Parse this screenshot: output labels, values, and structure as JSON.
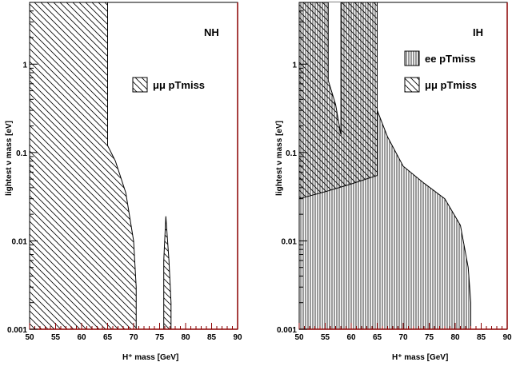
{
  "chart_data": [
    {
      "type": "area",
      "panel_label": "NH",
      "xlabel": "H⁺ mass [GeV]",
      "ylabel": "lightest ν mass [eV]",
      "xlim": [
        50,
        90
      ],
      "ylim": [
        0.001,
        5
      ],
      "yscale": "log",
      "xticks": [
        "50",
        "55",
        "60",
        "65",
        "70",
        "75",
        "80",
        "85",
        "90"
      ],
      "yticks": [
        {
          "value": 0.001,
          "label": "0.001"
        },
        {
          "value": 0.01,
          "label": "0.01"
        },
        {
          "value": 0.1,
          "label": "0.1"
        },
        {
          "value": 1,
          "label": "1"
        }
      ],
      "legend": [
        {
          "label": "μμ pTmiss",
          "pattern": "diagonal"
        }
      ],
      "series": [
        {
          "name": "μμ pTmiss",
          "pattern": "diagonal",
          "boundary": [
            {
              "x": 65,
              "y": 5
            },
            {
              "x": 65,
              "y": 0.12
            },
            {
              "x": 66.5,
              "y": 0.08
            },
            {
              "x": 68.5,
              "y": 0.035
            },
            {
              "x": 70,
              "y": 0.01
            },
            {
              "x": 70.5,
              "y": 0.003
            },
            {
              "x": 70.5,
              "y": 0.001
            }
          ]
        },
        {
          "name": "μμ pTmiss",
          "pattern": "diagonal",
          "boundary": [
            {
              "x": 75.8,
              "y": 0.001
            },
            {
              "x": 75.8,
              "y": 0.006
            },
            {
              "x": 76.2,
              "y": 0.019
            },
            {
              "x": 76.8,
              "y": 0.006
            },
            {
              "x": 77.2,
              "y": 0.002
            },
            {
              "x": 77.2,
              "y": 0.001
            }
          ]
        }
      ]
    },
    {
      "type": "area",
      "panel_label": "IH",
      "xlabel": "H⁺ mass [GeV]",
      "ylabel": "lightest ν mass [eV]",
      "xlim": [
        50,
        90
      ],
      "ylim": [
        0.001,
        5
      ],
      "yscale": "log",
      "xticks": [
        "50",
        "55",
        "60",
        "65",
        "70",
        "75",
        "80",
        "85",
        "90"
      ],
      "yticks": [
        {
          "value": 0.001,
          "label": "0.001"
        },
        {
          "value": 0.01,
          "label": "0.01"
        },
        {
          "value": 0.1,
          "label": "0.1"
        },
        {
          "value": 1,
          "label": "1"
        }
      ],
      "legend": [
        {
          "label": "ee pTmiss",
          "pattern": "vertical"
        },
        {
          "label": "μμ pTmiss",
          "pattern": "diagonal"
        }
      ],
      "series": [
        {
          "name": "ee pTmiss",
          "pattern": "vertical",
          "boundary": [
            {
              "x": 65,
              "y": 5
            },
            {
              "x": 65,
              "y": 0.3
            },
            {
              "x": 67,
              "y": 0.15
            },
            {
              "x": 70,
              "y": 0.07
            },
            {
              "x": 74,
              "y": 0.045
            },
            {
              "x": 78,
              "y": 0.03
            },
            {
              "x": 81,
              "y": 0.015
            },
            {
              "x": 82.5,
              "y": 0.005
            },
            {
              "x": 83,
              "y": 0.002
            },
            {
              "x": 83,
              "y": 0.001
            }
          ]
        },
        {
          "name": "μμ pTmiss",
          "pattern": "diagonal",
          "lower_edge": [
            {
              "x": 50,
              "y": 0.03
            },
            {
              "x": 55,
              "y": 0.036
            },
            {
              "x": 60,
              "y": 0.044
            },
            {
              "x": 65,
              "y": 0.055
            }
          ],
          "notch": [
            {
              "x": 55.6,
              "y": 5
            },
            {
              "x": 55.6,
              "y": 0.65
            },
            {
              "x": 57,
              "y": 0.35
            },
            {
              "x": 58,
              "y": 0.16
            },
            {
              "x": 58,
              "y": 5
            }
          ]
        }
      ]
    }
  ]
}
